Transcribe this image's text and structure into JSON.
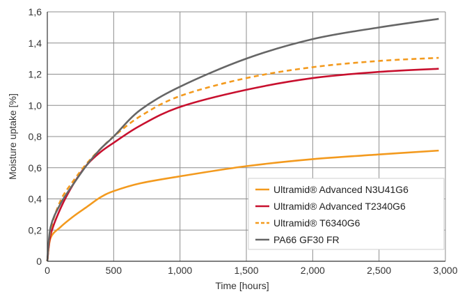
{
  "chart_data": {
    "type": "line",
    "xlabel": "Time [hours]",
    "ylabel": "Moisture uptake [%]",
    "xlim": [
      0,
      3000
    ],
    "ylim": [
      0,
      1.6
    ],
    "xticks": [
      0,
      500,
      1000,
      1500,
      2000,
      2500,
      3000
    ],
    "xtick_labels": [
      "0",
      "500",
      "1,000",
      "1,500",
      "2,000",
      "2,500",
      "3,000"
    ],
    "yticks": [
      0,
      0.2,
      0.4,
      0.6,
      0.8,
      1.0,
      1.2,
      1.4,
      1.6
    ],
    "ytick_labels": [
      "0",
      "0,2",
      "0,4",
      "0,6",
      "0,8",
      "1,0",
      "1,2",
      "1,4",
      "1,6"
    ],
    "grid": true,
    "legend_position": "bottom-right",
    "series": [
      {
        "name": "Ultramid® Advanced N3U41G6",
        "color": "#f39a1e",
        "dash": "solid",
        "x": [
          0,
          25,
          100,
          200,
          300,
          400,
          500,
          700,
          1000,
          1500,
          2000,
          2500,
          2950
        ],
        "y": [
          0,
          0.15,
          0.22,
          0.29,
          0.35,
          0.41,
          0.45,
          0.5,
          0.545,
          0.61,
          0.655,
          0.685,
          0.71
        ]
      },
      {
        "name": "Ultramid® Advanced T2340G6",
        "color": "#c8102e",
        "dash": "solid",
        "x": [
          0,
          25,
          100,
          200,
          300,
          400,
          500,
          700,
          1000,
          1500,
          2000,
          2500,
          2950
        ],
        "y": [
          0,
          0.17,
          0.34,
          0.5,
          0.62,
          0.7,
          0.76,
          0.87,
          0.99,
          1.1,
          1.175,
          1.215,
          1.235
        ]
      },
      {
        "name": "Ultramid® T6340G6",
        "color": "#f39a1e",
        "dash": "dashed",
        "x": [
          0,
          25,
          100,
          200,
          300,
          400,
          500,
          700,
          1000,
          1500,
          2000,
          2500,
          2950
        ],
        "y": [
          0,
          0.2,
          0.39,
          0.52,
          0.63,
          0.72,
          0.8,
          0.93,
          1.06,
          1.175,
          1.245,
          1.285,
          1.305
        ]
      },
      {
        "name": "PA66 GF30 FR",
        "color": "#666666",
        "dash": "solid",
        "x": [
          0,
          25,
          100,
          200,
          300,
          400,
          500,
          700,
          1000,
          1500,
          2000,
          2500,
          2950
        ],
        "y": [
          0,
          0.22,
          0.37,
          0.5,
          0.62,
          0.72,
          0.8,
          0.97,
          1.12,
          1.3,
          1.425,
          1.5,
          1.555
        ]
      }
    ]
  }
}
